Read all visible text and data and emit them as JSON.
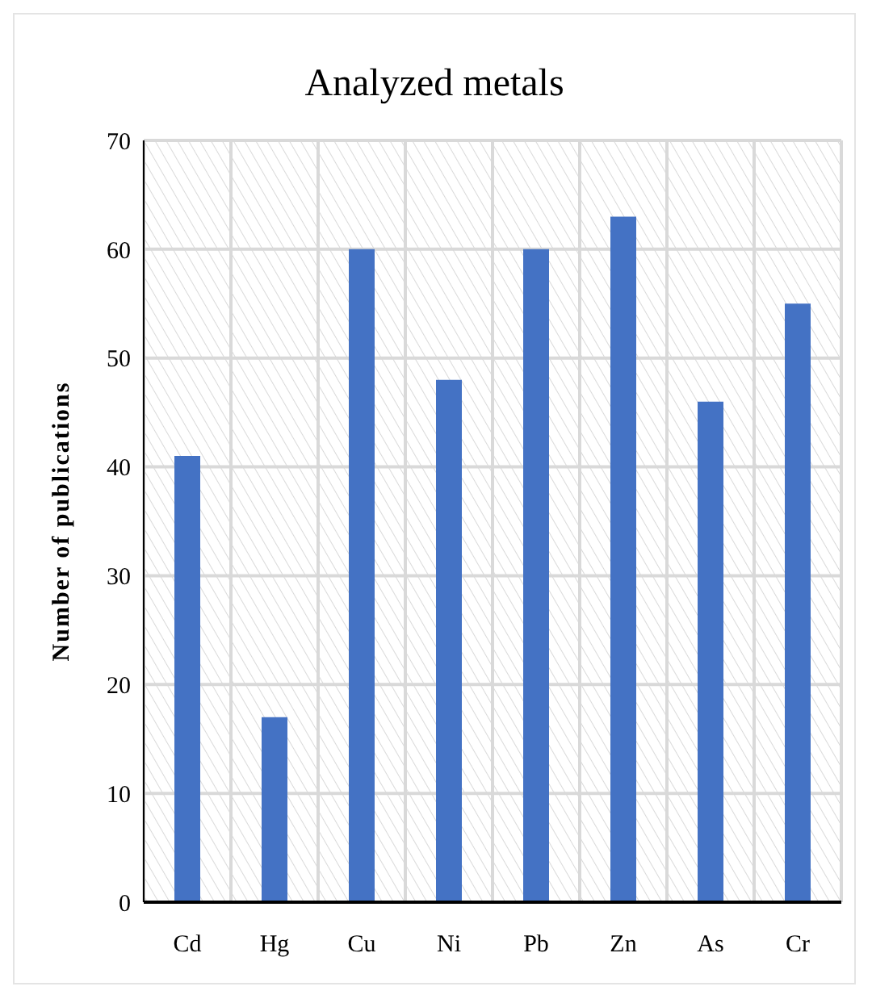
{
  "chart_data": {
    "type": "bar",
    "title": "Analyzed metals",
    "ylabel": "Number of publications",
    "categories": [
      "Cd",
      "Hg",
      "Cu",
      "Ni",
      "Pb",
      "Zn",
      "As",
      "Cr"
    ],
    "values": [
      41,
      17,
      60,
      48,
      60,
      63,
      46,
      55
    ],
    "color": "#4472c4",
    "ylim": [
      0,
      70
    ],
    "yticks": [
      0,
      10,
      20,
      30,
      40,
      50,
      60,
      70
    ],
    "grid": true
  }
}
